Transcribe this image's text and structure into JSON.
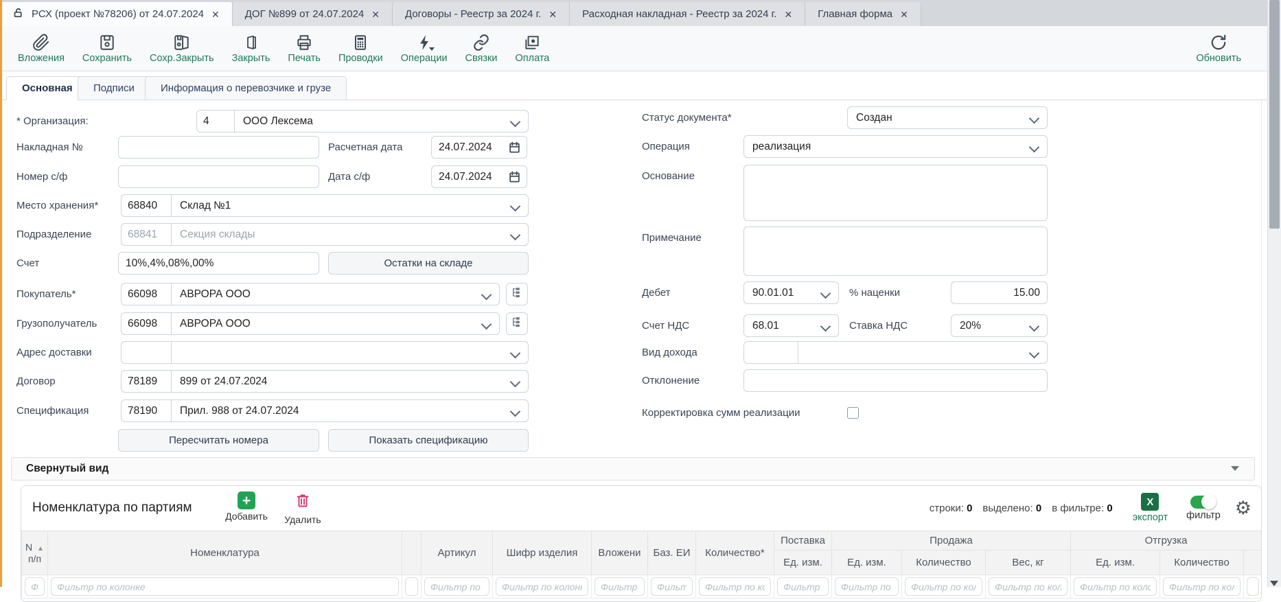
{
  "window_tabs": {
    "close_glyph": "✕",
    "items": [
      {
        "label": "РСХ (проект №78206) от 24.07.2024"
      },
      {
        "label": "ДОГ №899 от 24.07.2024"
      },
      {
        "label": "Договоры - Реестр за 2024 г."
      },
      {
        "label": "Расходная накладная - Реестр за 2024 г."
      },
      {
        "label": "Главная форма"
      }
    ]
  },
  "toolbar": {
    "attachments": "Вложения",
    "save": "Сохранить",
    "save_close": "Сохр.Закрыть",
    "close": "Закрыть",
    "print": "Печать",
    "postings": "Проводки",
    "operations": "Операции",
    "links": "Связки",
    "payment": "Оплата",
    "refresh": "Обновить"
  },
  "form_tabs": {
    "main": "Основная",
    "signatures": "Подписи",
    "cargo": "Информация о перевозчике и грузе"
  },
  "form_left": {
    "org": {
      "label": "* Организация:",
      "code": "4",
      "value": "ООО Лексема"
    },
    "waybill": {
      "label": "Накладная №",
      "value": ""
    },
    "calc_date": {
      "label": "Расчетная дата",
      "value": "24.07.2024"
    },
    "invoice_no": {
      "label": "Номер с/ф",
      "value": ""
    },
    "invoice_date": {
      "label": "Дата с/ф",
      "value": "24.07.2024"
    },
    "storage": {
      "label": "Место хранения*",
      "code": "68840",
      "value": "Склад №1"
    },
    "division": {
      "label": "Подразделение",
      "code": "68841",
      "value": "Секция склады"
    },
    "account": {
      "label": "Счет",
      "value": "10%,4%,08%,00%"
    },
    "stock_button": "Остатки на складе",
    "buyer": {
      "label": "Покупатель*",
      "code": "66098",
      "value": "АВРОРА ООО"
    },
    "consignee": {
      "label": "Грузополучатель",
      "code": "66098",
      "value": "АВРОРА ООО"
    },
    "delivery_addr": {
      "label": "Адрес доставки",
      "code": "",
      "value": ""
    },
    "contract": {
      "label": "Договор",
      "code": "78189",
      "value": "899 от 24.07.2024"
    },
    "spec": {
      "label": "Спецификация",
      "code": "78190",
      "value": "Прил. 988 от 24.07.2024"
    },
    "recalc_button": "Пересчитать номера",
    "show_spec_button": "Показать спецификацию"
  },
  "form_right": {
    "status": {
      "label": "Статус документа*",
      "value": "Создан"
    },
    "operation": {
      "label": "Операция",
      "value": "реализация"
    },
    "basis": {
      "label": "Основание",
      "value": ""
    },
    "note": {
      "label": "Примечание",
      "value": ""
    },
    "debit": {
      "label": "Дебет",
      "value": "90.01.01"
    },
    "markup": {
      "label": "% наценки",
      "value": "15.00"
    },
    "vat_account": {
      "label": "Счет НДС",
      "value": "68.01"
    },
    "vat_rate": {
      "label": "Ставка НДС",
      "value": "20%"
    },
    "income_type": {
      "label": "Вид дохода",
      "code": "",
      "value": ""
    },
    "deviation": {
      "label": "Отклонение",
      "value": ""
    },
    "correction": {
      "label": "Корректировка сумм реализации",
      "checked": false
    }
  },
  "collapsed_view": {
    "label": "Свернутый вид"
  },
  "batch": {
    "title": "Номенклатура по партиям",
    "add": "Добавить",
    "delete": "Удалить",
    "stats": {
      "rows_label": "строки:",
      "rows": "0",
      "selected_label": "выделено:",
      "selected": "0",
      "filtered_label": "в фильтре:",
      "filtered": "0"
    },
    "export": "экспорт",
    "filter": "фильтр",
    "excel_glyph": "X"
  },
  "table": {
    "filter_placeholder": "Фильтр по колонке",
    "sort_glyph": "▲",
    "groups": [
      {
        "label": "Поставка",
        "span": 1
      },
      {
        "label": "Продажа",
        "span": 3
      },
      {
        "label": "Отгрузка",
        "span": 3
      }
    ],
    "columns": [
      {
        "label": "N п/п"
      },
      {
        "label": "Номенклатура"
      },
      {
        "label": ""
      },
      {
        "label": "Артикул"
      },
      {
        "label": "Шифр изделия"
      },
      {
        "label": "Вложени"
      },
      {
        "label": "Баз. ЕИ"
      },
      {
        "label": "Количество*"
      },
      {
        "label": "Ед. изм."
      },
      {
        "label": "Ед. изм."
      },
      {
        "label": "Количество"
      },
      {
        "label": "Вес, кг"
      },
      {
        "label": "Ед. изм."
      },
      {
        "label": "Количество"
      },
      {
        "label": ""
      }
    ]
  },
  "colors": {
    "accent_orange": "#ee9d3a",
    "toolbar_green": "#1d7a57",
    "add_green": "#21a355",
    "delete_red": "#d6386c",
    "excel_green": "#1a7044",
    "toggle_green": "#27a84e"
  }
}
